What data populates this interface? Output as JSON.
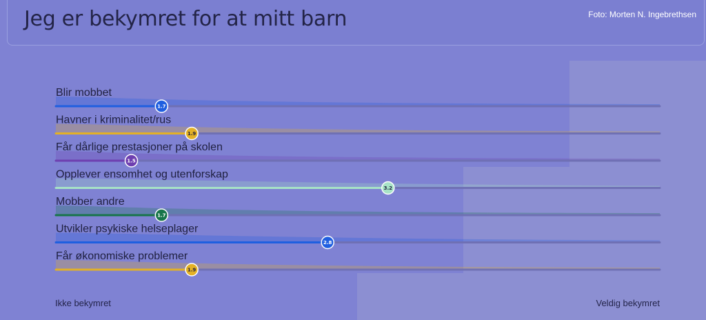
{
  "header": {
    "title": "Jeg er bekymret for at mitt barn",
    "credit": "Foto: Morten N. Ingebrethsen"
  },
  "chart_data": {
    "type": "bar",
    "scale_min_label": "Ikke bekymret",
    "scale_max_label": "Veldig bekymret",
    "xlim": [
      1,
      5
    ],
    "grid": false,
    "legend": "none",
    "categories": [
      "Blir mobbet",
      "Havner i kriminalitet/rus",
      "Får dårlige prestasjoner på skolen",
      "Opplever ensomhet og utenforskap",
      "Mobber andre",
      "Utvikler psykiske helseplager",
      "Får økonomiske problemer"
    ],
    "values": [
      1.7,
      1.9,
      1.5,
      3.2,
      1.7,
      2.8,
      1.9
    ],
    "value_labels": [
      "1.7",
      "1.9",
      "1.5",
      "3.2",
      "1.7",
      "2.8",
      "1.9"
    ],
    "colors": [
      "#1f5fe0",
      "#e3b126",
      "#6e3fb0",
      "#a7e3c6",
      "#17754a",
      "#1f5fe0",
      "#e3b126"
    ]
  }
}
